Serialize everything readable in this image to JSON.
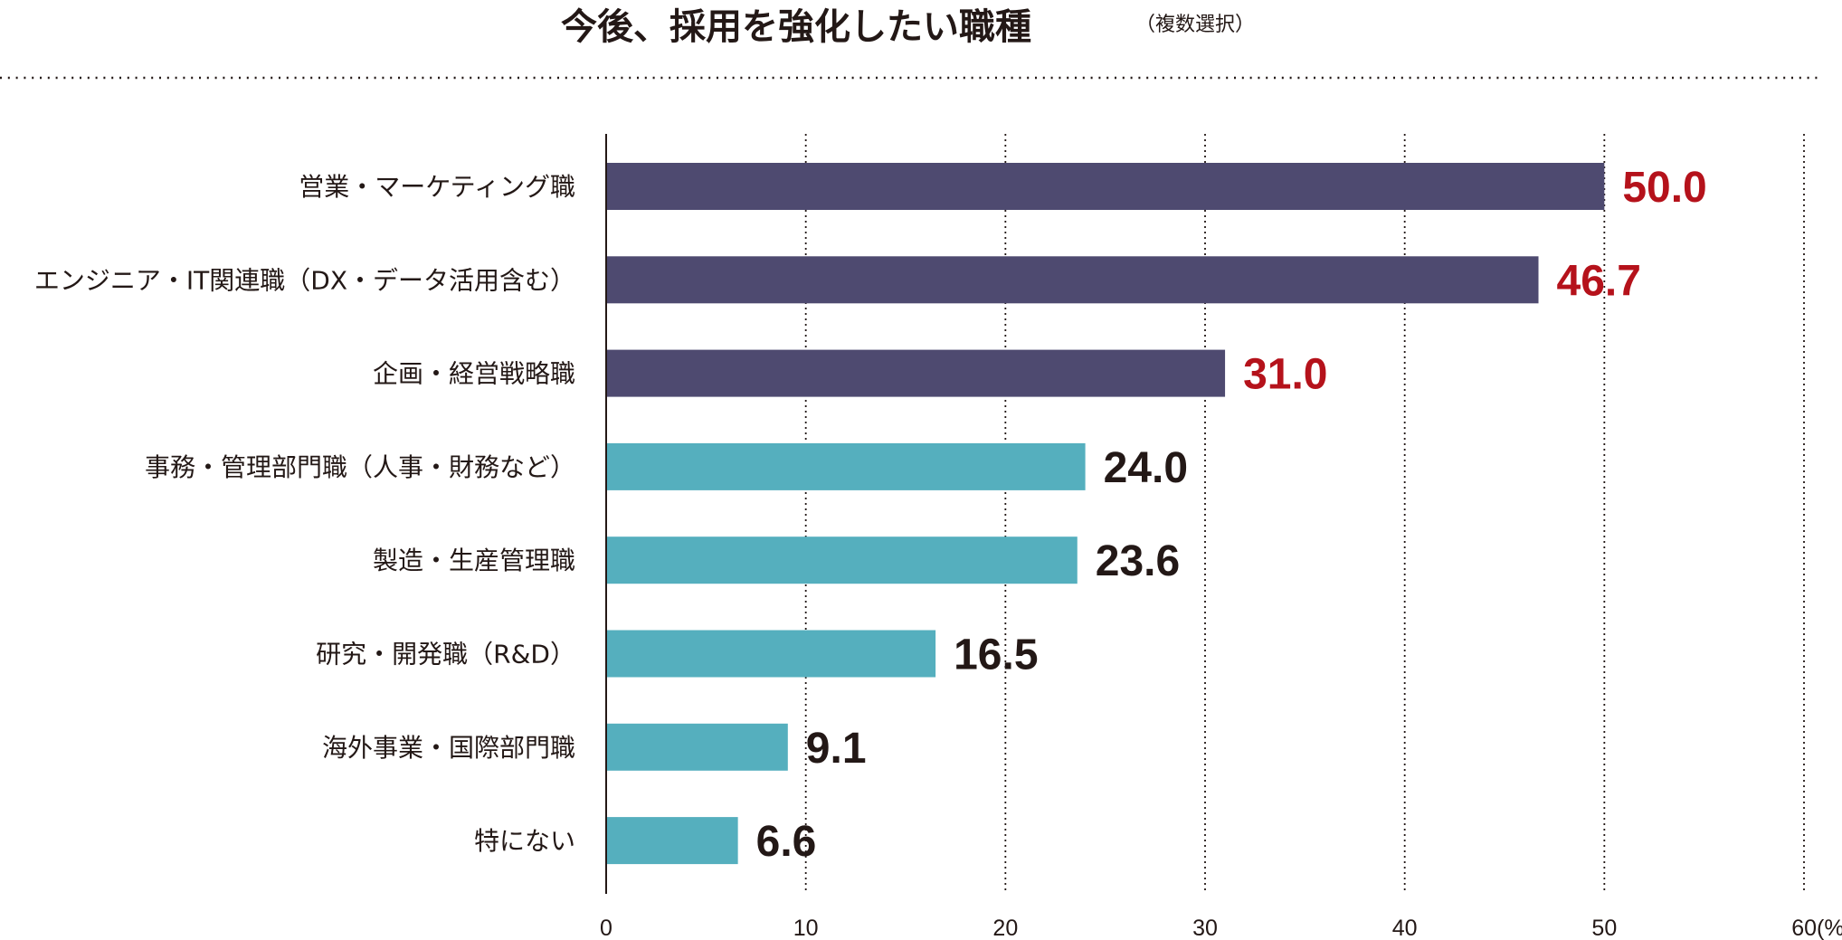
{
  "chart_data": {
    "type": "bar",
    "orientation": "horizontal",
    "title": "今後、採用を強化したい職種",
    "subtitle": "（複数選択）",
    "categories": [
      "営業・マーケティング職",
      "エンジニア・IT関連職（DX・データ活用含む）",
      "企画・経営戦略職",
      "事務・管理部門職（人事・財務など）",
      "製造・生産管理職",
      "研究・開発職（R&D）",
      "海外事業・国際部門職",
      "特にない"
    ],
    "values": [
      50.0,
      46.7,
      31.0,
      24.0,
      23.6,
      16.5,
      9.1,
      6.6
    ],
    "value_labels": [
      "50.0",
      "46.7",
      "31.0",
      "24.0",
      "23.6",
      "16.5",
      "9.1",
      "6.6"
    ],
    "bar_colors": [
      "#4e4a70",
      "#4e4a70",
      "#4e4a70",
      "#55afbe",
      "#55afbe",
      "#55afbe",
      "#55afbe",
      "#55afbe"
    ],
    "label_colors": [
      "#b5121b",
      "#b5121b",
      "#b5121b",
      "#231816",
      "#231816",
      "#231816",
      "#231816",
      "#231816"
    ],
    "xlim": [
      0,
      60
    ],
    "xticks": [
      0,
      10,
      20,
      30,
      40,
      50,
      60
    ],
    "xtick_labels": [
      "0",
      "10",
      "20",
      "30",
      "40",
      "50",
      "60"
    ],
    "xunit": "(%)",
    "grid": "vertical dotted"
  }
}
